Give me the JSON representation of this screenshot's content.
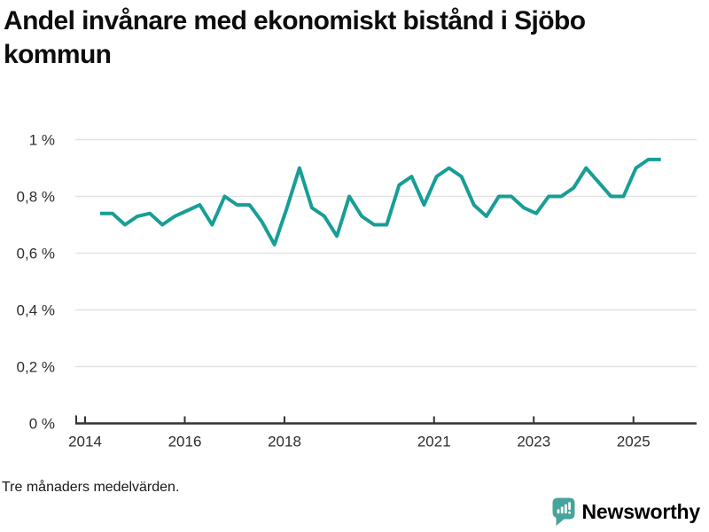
{
  "header": {
    "title_lines": [
      "Andel invånare med ekonomiskt bistånd i Sjöbo",
      "kommun"
    ]
  },
  "footer": {
    "note": "Tre månaders medelvärden.",
    "brand": "Newsworthy"
  },
  "icons": {
    "logo": "speech-bubble-with-bar-chart-and-exclamation"
  },
  "colors": {
    "line": "#179e96",
    "grid": "#e3e3e3",
    "axis": "#333333",
    "tick_text": "#2e2e2e",
    "title_text": "#0d0d0d",
    "brand_teal": "#47a49c"
  },
  "chart_data": {
    "type": "line",
    "title": "Andel invånare med ekonomiskt bistånd i Sjöbo kommun",
    "note": "Tre månaders medelvärden.",
    "unit": "%",
    "grid": true,
    "legend": false,
    "xlim": [
      2013.8,
      2025.8
    ],
    "ylim": [
      0,
      1.05
    ],
    "x_tick_values": [
      2014,
      2016,
      2018,
      2021,
      2023,
      2025
    ],
    "x_tick_labels": [
      "2014",
      "2016",
      "2018",
      "2021",
      "2023",
      "2025"
    ],
    "y_tick_values": [
      0,
      0.2,
      0.4,
      0.6,
      0.8,
      1
    ],
    "y_tick_labels": [
      "0 %",
      "0,2 %",
      "0,4 %",
      "0,6 %",
      "0,8 %",
      "1 %"
    ],
    "x_start": 2014.3,
    "x_step": 0.25,
    "values": [
      0.74,
      0.74,
      0.7,
      0.73,
      0.74,
      0.7,
      0.73,
      0.75,
      0.77,
      0.7,
      0.8,
      0.77,
      0.77,
      0.71,
      0.63,
      0.76,
      0.9,
      0.76,
      0.73,
      0.66,
      0.8,
      0.73,
      0.7,
      0.7,
      0.84,
      0.87,
      0.77,
      0.87,
      0.9,
      0.87,
      0.77,
      0.73,
      0.8,
      0.8,
      0.76,
      0.74,
      0.8,
      0.8,
      0.83,
      0.9,
      0.85,
      0.8,
      0.8,
      0.9,
      0.93,
      0.93
    ]
  }
}
